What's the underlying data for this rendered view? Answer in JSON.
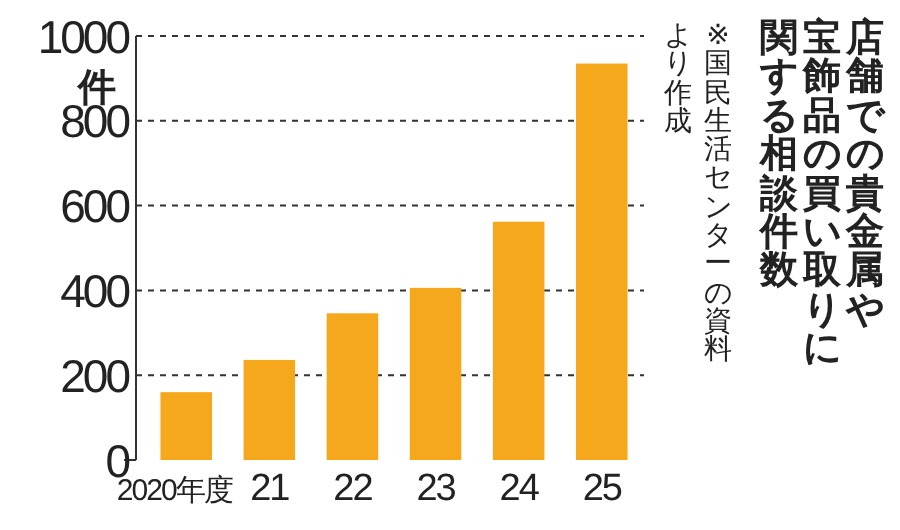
{
  "chart_data": {
    "type": "bar",
    "title": "店舗での貴金属や宝飾品の買い取りに関する相談件数",
    "annotations": [
      "※国民生活センターの資料より作成"
    ],
    "ylabel": "件",
    "categories": [
      "2020年度",
      "21",
      "22",
      "23",
      "24",
      "25"
    ],
    "values": [
      160,
      236,
      346,
      406,
      562,
      935
    ],
    "color": "#f5a81c",
    "ylim": [
      0,
      1000
    ],
    "yticks": [
      0,
      200,
      400,
      600,
      800,
      1000
    ],
    "grid": "y"
  }
}
